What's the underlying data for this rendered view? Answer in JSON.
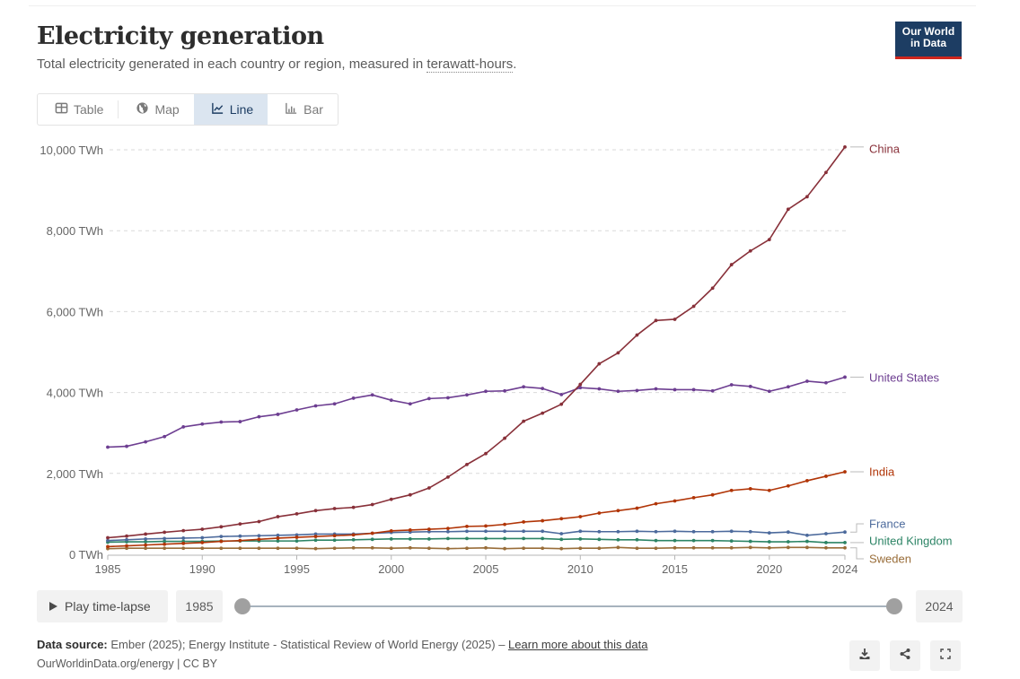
{
  "header": {
    "title": "Electricity generation",
    "subtitle_prefix": "Total electricity generated in each country or region, measured in ",
    "subtitle_term": "terawatt-hours",
    "subtitle_suffix": ".",
    "logo_line1": "Our World",
    "logo_line2": "in Data"
  },
  "tabs": [
    {
      "label": "Table",
      "icon": "table-icon",
      "active": false
    },
    {
      "label": "Map",
      "icon": "globe-icon",
      "active": false
    },
    {
      "label": "Line",
      "icon": "line-chart-icon",
      "active": true
    },
    {
      "label": "Bar",
      "icon": "bar-chart-icon",
      "active": false
    }
  ],
  "timeline": {
    "play_label": "Play time-lapse",
    "start_year": "1985",
    "end_year": "2024"
  },
  "footer": {
    "source_label": "Data source:",
    "source_text": " Ember (2025); Energy Institute - Statistical Review of World Energy (2025) – ",
    "learn_more": "Learn more about this data",
    "url_license": "OurWorldinData.org/energy | CC BY"
  },
  "actions": {
    "download": "download-icon",
    "share": "share-icon",
    "fullscreen": "fullscreen-icon"
  },
  "chart_data": {
    "type": "line",
    "title": "Electricity generation",
    "subtitle": "Total electricity generated in each country or region, measured in terawatt-hours.",
    "xlabel": "",
    "ylabel": "",
    "x": [
      1985,
      1986,
      1987,
      1988,
      1989,
      1990,
      1991,
      1992,
      1993,
      1994,
      1995,
      1996,
      1997,
      1998,
      1999,
      2000,
      2001,
      2002,
      2003,
      2004,
      2005,
      2006,
      2007,
      2008,
      2009,
      2010,
      2011,
      2012,
      2013,
      2014,
      2015,
      2016,
      2017,
      2018,
      2019,
      2020,
      2021,
      2022,
      2023,
      2024
    ],
    "x_ticks": [
      1985,
      1990,
      1995,
      2000,
      2005,
      2010,
      2015,
      2020,
      2024
    ],
    "y_ticks": [
      0,
      2000,
      4000,
      6000,
      8000,
      10000
    ],
    "y_tick_labels": [
      "0 TWh",
      "2,000 TWh",
      "4,000 TWh",
      "6,000 TWh",
      "8,000 TWh",
      "10,000 TWh"
    ],
    "xlim": [
      1985,
      2024
    ],
    "ylim": [
      0,
      10000
    ],
    "grid": "horizontal-dashed",
    "legend": "right-line-labels",
    "series": [
      {
        "name": "China",
        "color": "#883039",
        "values": [
          410,
          450,
          500,
          545,
          585,
          620,
          680,
          750,
          810,
          930,
          1000,
          1080,
          1130,
          1160,
          1230,
          1360,
          1470,
          1640,
          1910,
          2220,
          2490,
          2870,
          3290,
          3490,
          3710,
          4200,
          4710,
          4980,
          5420,
          5780,
          5810,
          6130,
          6580,
          7160,
          7500,
          7780,
          8530,
          8840,
          9440,
          10070
        ]
      },
      {
        "name": "United States",
        "color": "#6d3e91",
        "values": [
          2650,
          2670,
          2780,
          2910,
          3150,
          3220,
          3270,
          3280,
          3400,
          3460,
          3570,
          3670,
          3720,
          3860,
          3940,
          3810,
          3720,
          3850,
          3870,
          3940,
          4030,
          4040,
          4140,
          4100,
          3950,
          4120,
          4090,
          4030,
          4050,
          4090,
          4070,
          4070,
          4040,
          4190,
          4150,
          4030,
          4140,
          4280,
          4240,
          4380
        ]
      },
      {
        "name": "India",
        "color": "#b13507",
        "values": [
          190,
          210,
          230,
          250,
          270,
          290,
          320,
          340,
          370,
          400,
          420,
          440,
          460,
          480,
          520,
          580,
          600,
          620,
          640,
          690,
          700,
          740,
          800,
          830,
          880,
          930,
          1020,
          1080,
          1140,
          1250,
          1320,
          1400,
          1470,
          1580,
          1620,
          1580,
          1690,
          1820,
          1930,
          2040
        ]
      },
      {
        "name": "France",
        "color": "#4c6a9c",
        "values": [
          340,
          360,
          380,
          390,
          400,
          410,
          440,
          450,
          460,
          470,
          480,
          500,
          500,
          500,
          520,
          540,
          550,
          560,
          560,
          570,
          570,
          570,
          570,
          570,
          510,
          570,
          560,
          560,
          570,
          560,
          570,
          560,
          560,
          570,
          560,
          530,
          550,
          470,
          510,
          550
        ]
      },
      {
        "name": "United Kingdom",
        "color": "#38aaba",
        "values": [
          300,
          310,
          310,
          320,
          320,
          320,
          330,
          330,
          330,
          330,
          330,
          350,
          350,
          360,
          370,
          380,
          380,
          380,
          390,
          390,
          390,
          390,
          390,
          390,
          370,
          380,
          370,
          360,
          360,
          340,
          340,
          340,
          340,
          330,
          320,
          310,
          310,
          320,
          290,
          290
        ]
      },
      {
        "name": "Sweden",
        "color": "#a2559c",
        "values": [
          140,
          150,
          150,
          150,
          150,
          150,
          150,
          150,
          150,
          150,
          150,
          140,
          150,
          160,
          160,
          150,
          160,
          150,
          140,
          150,
          160,
          140,
          150,
          150,
          140,
          150,
          150,
          170,
          150,
          150,
          160,
          160,
          160,
          160,
          170,
          160,
          170,
          170,
          160,
          160
        ]
      }
    ],
    "series_display_colors": {
      "China": "#883039",
      "United States": "#6d3e91",
      "India": "#b13507",
      "France": "#4c6a9c",
      "United Kingdom": "#2c8465",
      "Sweden": "#996d39"
    }
  }
}
